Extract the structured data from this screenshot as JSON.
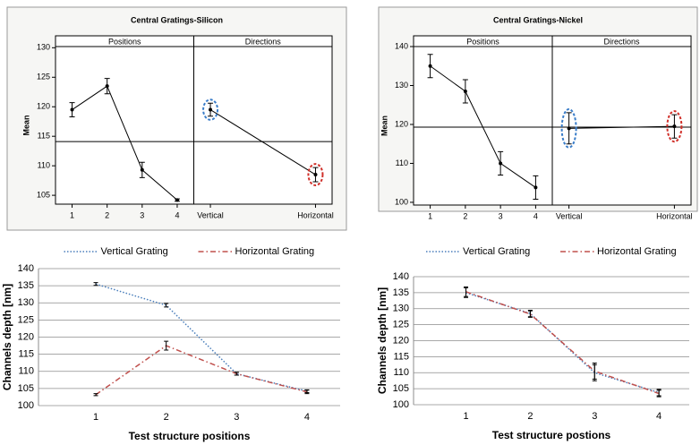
{
  "chart_data": [
    {
      "type": "effects",
      "title": "Central Gratings-Silicon",
      "y_label": "Mean",
      "ylim": [
        103.5,
        130.2
      ],
      "yticks": [
        105,
        110,
        115,
        120,
        125,
        130
      ],
      "reference_line": 114.1,
      "color": "#000000",
      "panels": [
        {
          "title": "Positions",
          "categories": [
            "1",
            "2",
            "3",
            "4"
          ],
          "values": [
            119.5,
            123.5,
            109.3,
            104.2
          ],
          "errors": [
            1.2,
            1.3,
            1.3,
            0.2
          ]
        },
        {
          "title": "Directions",
          "categories": [
            "Vertical",
            "Horizontal"
          ],
          "values": [
            119.5,
            108.5
          ],
          "errors": [
            1.1,
            1.2
          ],
          "highlight_colors": [
            "#3a7dc9",
            "#d0302a"
          ]
        }
      ]
    },
    {
      "type": "effects",
      "title": "Central Gratings-Nickel",
      "y_label": "Mean",
      "ylim": [
        99.3,
        140
      ],
      "yticks": [
        100,
        110,
        120,
        130,
        140
      ],
      "reference_line": 119.3,
      "color": "#000000",
      "panels": [
        {
          "title": "Positions",
          "categories": [
            "1",
            "2",
            "3",
            "4"
          ],
          "values": [
            135,
            128.5,
            110,
            103.8
          ],
          "errors": [
            3,
            3,
            3,
            3
          ]
        },
        {
          "title": "Directions",
          "categories": [
            "Vertical",
            "Horizontal"
          ],
          "values": [
            119,
            119.5
          ],
          "errors": [
            4,
            3
          ],
          "highlight_colors": [
            "#3a7dc9",
            "#d0302a"
          ]
        }
      ]
    },
    {
      "type": "line",
      "categories": [
        "1",
        "2",
        "3",
        "4"
      ],
      "x_label": "Test structure positions",
      "y_label": "Channels depth [nm]",
      "ylim": [
        100,
        140
      ],
      "yticks": [
        100,
        105,
        110,
        115,
        120,
        125,
        130,
        135,
        140
      ],
      "grid": true,
      "legend": "top",
      "series": [
        {
          "name": "Vertical Grating",
          "color": "#4a7ebb",
          "dash": "dotted",
          "values": [
            135.5,
            129.3,
            109.3,
            104.2
          ],
          "errors": [
            0.4,
            0.5,
            0.4,
            0.4
          ]
        },
        {
          "name": "Horizontal Grating",
          "color": "#c0504d",
          "dash": "dashdot",
          "values": [
            103.2,
            117.5,
            109.3,
            104
          ],
          "errors": [
            0.3,
            1.3,
            0.4,
            0.5
          ]
        }
      ]
    },
    {
      "type": "line",
      "categories": [
        "1",
        "2",
        "3",
        "4"
      ],
      "x_label": "Test structure postions",
      "y_label": "Channels depth [nm]",
      "ylim": [
        100,
        140
      ],
      "yticks": [
        100,
        105,
        110,
        115,
        120,
        125,
        130,
        135,
        140
      ],
      "grid": true,
      "legend": "top",
      "series": [
        {
          "name": "Vertical Grating",
          "color": "#4a7ebb",
          "dash": "dotted",
          "values": [
            135,
            128.5,
            110,
            103.8
          ],
          "errors": [
            1.5,
            1,
            2.5,
            1
          ]
        },
        {
          "name": "Horizontal Grating",
          "color": "#c0504d",
          "dash": "dashdot",
          "values": [
            135.3,
            128.3,
            110.5,
            103.5
          ],
          "errors": [
            1.5,
            1,
            2.5,
            1
          ]
        }
      ]
    }
  ]
}
